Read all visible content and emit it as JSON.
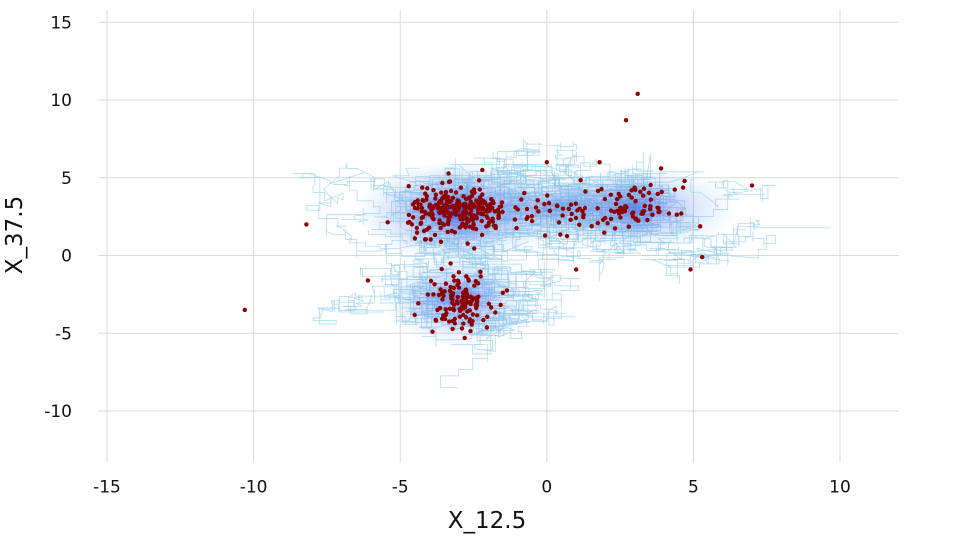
{
  "chart_data": {
    "type": "scatter",
    "title": "",
    "xlabel": "X_12.5",
    "ylabel": "X_37.5",
    "xlim": [
      -15.3,
      12.0
    ],
    "ylim": [
      -13.3,
      15.8
    ],
    "x_ticks": [
      -15,
      -10,
      -5,
      0,
      5,
      10
    ],
    "y_ticks": [
      -10,
      -5,
      0,
      5,
      10,
      15
    ],
    "x_tick_labels": [
      "-15",
      "-10",
      "-5",
      "0",
      "5",
      "10"
    ],
    "y_tick_labels": [
      "-10",
      "-5",
      "0",
      "5",
      "10",
      "15"
    ],
    "grid": true,
    "legend": "none",
    "colors": {
      "trajectory": "#8ec9e8",
      "density_core": "#2a4cdc",
      "density_mid": "#6b8df0",
      "points": "#8b0000"
    },
    "series": [
      {
        "kind": "trajectory",
        "description_values": "random-walk trajectories, approximate extent",
        "x_range": [
          -11.3,
          7.8
        ],
        "y_range": [
          -8.7,
          11.8
        ]
      },
      {
        "kind": "density",
        "centers": [
          {
            "x": -3.0,
            "y": 2.8,
            "sx": 1.6,
            "sy": 1.5,
            "strength": 1.0
          },
          {
            "x": -3.0,
            "y": -2.8,
            "sx": 1.2,
            "sy": 1.4,
            "strength": 0.7
          },
          {
            "x": 3.0,
            "y": 3.0,
            "sx": 1.6,
            "sy": 1.3,
            "strength": 0.75
          },
          {
            "x": 0.0,
            "y": 3.0,
            "sx": 1.5,
            "sy": 1.0,
            "strength": 0.45
          }
        ]
      },
      {
        "kind": "points",
        "clusters": [
          {
            "x": -3.0,
            "y": 2.8,
            "sx": 0.85,
            "sy": 0.75,
            "n": 260
          },
          {
            "x": -3.0,
            "y": -2.8,
            "sx": 0.55,
            "sy": 0.9,
            "n": 120
          },
          {
            "x": 3.0,
            "y": 3.0,
            "sx": 0.7,
            "sy": 0.65,
            "n": 70
          },
          {
            "x": 0.0,
            "y": 2.9,
            "sx": 1.4,
            "sy": 0.7,
            "n": 45
          }
        ],
        "outliers": [
          {
            "x": -10.3,
            "y": -3.5
          },
          {
            "x": -8.2,
            "y": 2.0
          },
          {
            "x": -6.1,
            "y": -1.6
          },
          {
            "x": 3.1,
            "y": 10.4
          },
          {
            "x": 2.7,
            "y": 8.7
          },
          {
            "x": 7.0,
            "y": 4.5
          },
          {
            "x": 5.3,
            "y": -0.1
          },
          {
            "x": 4.9,
            "y": -0.9
          },
          {
            "x": 1.0,
            "y": -0.9
          },
          {
            "x": 1.8,
            "y": 6.0
          },
          {
            "x": 0.0,
            "y": 6.0
          },
          {
            "x": -4.5,
            "y": 1.1
          },
          {
            "x": -3.9,
            "y": -4.9
          },
          {
            "x": -2.8,
            "y": -5.3
          },
          {
            "x": -2.2,
            "y": 5.5
          },
          {
            "x": -1.5,
            "y": -2.4
          },
          {
            "x": 4.7,
            "y": 4.8
          },
          {
            "x": 3.9,
            "y": 5.6
          }
        ]
      }
    ]
  }
}
